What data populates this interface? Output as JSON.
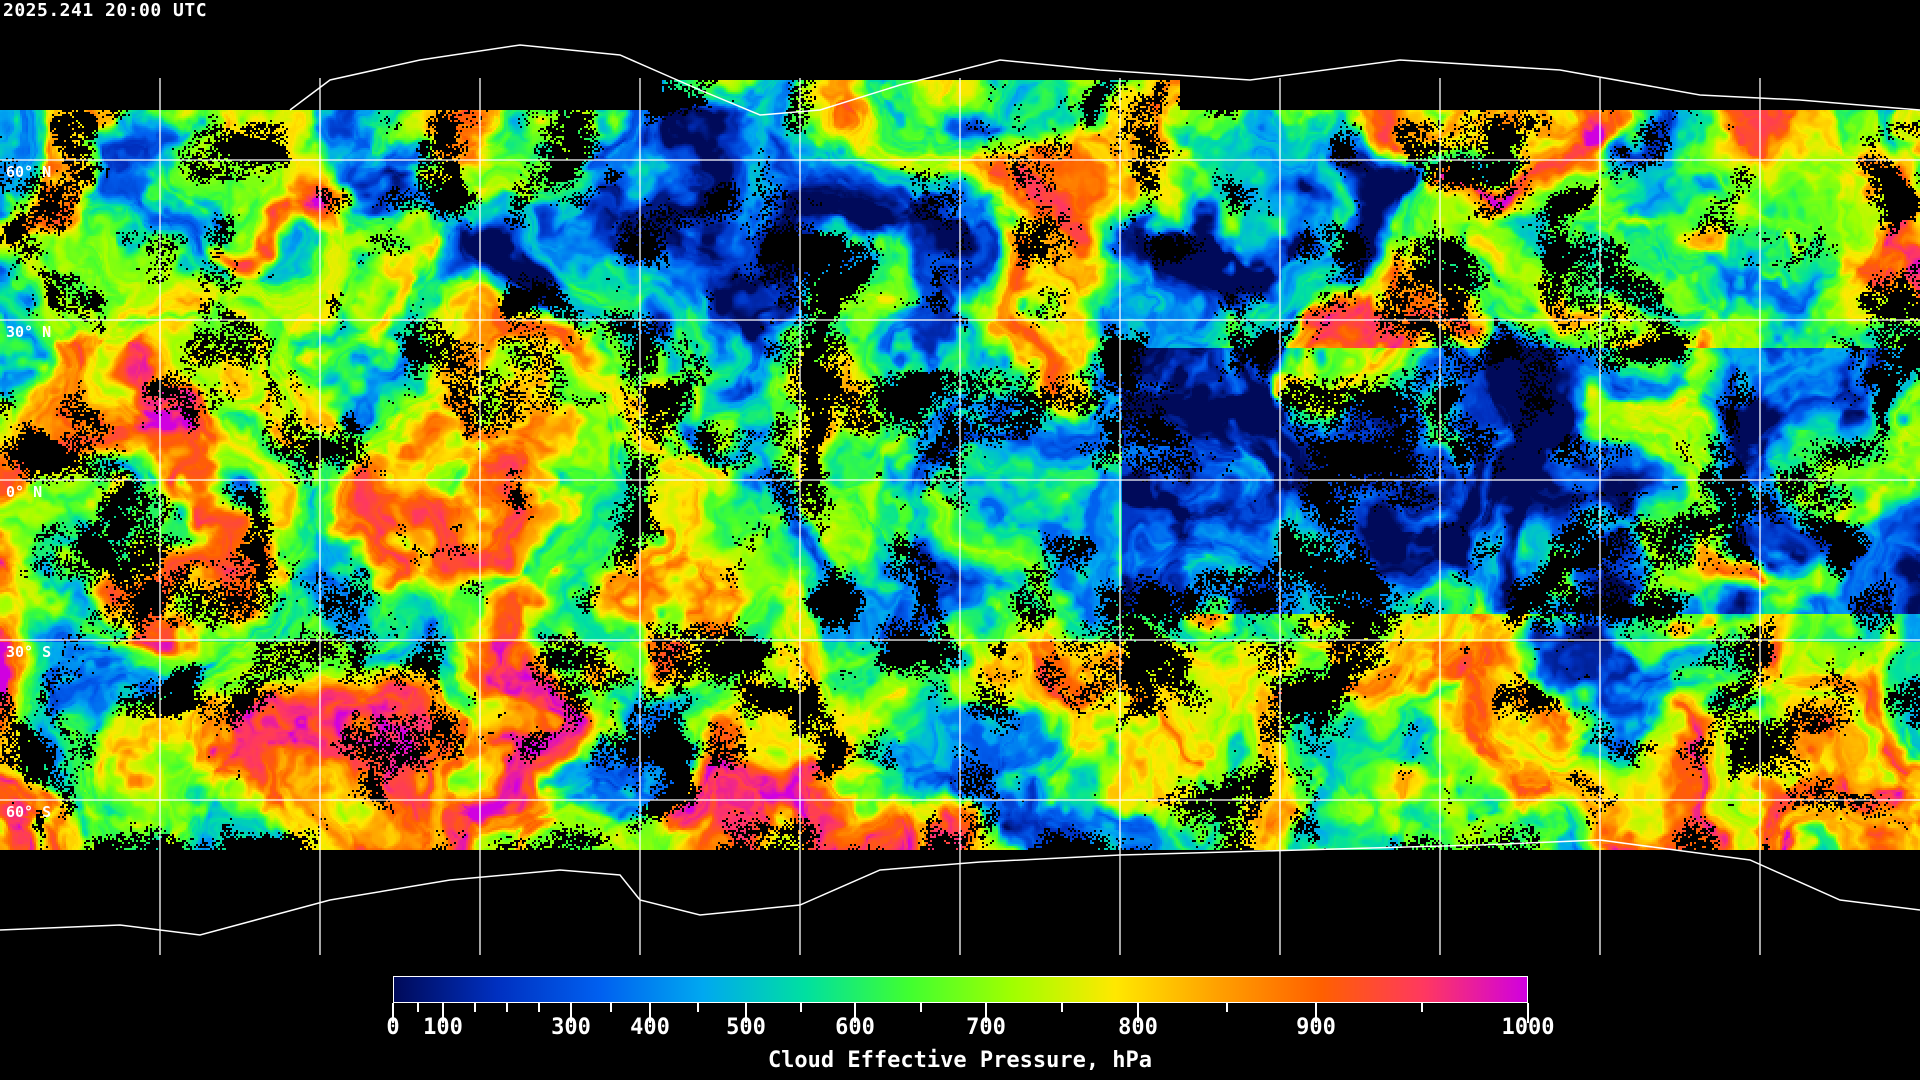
{
  "timestamp": "2025.241 20:00 UTC",
  "map": {
    "projection": "equirectangular",
    "grid_longitudes": [
      -150,
      -120,
      -90,
      -60,
      -30,
      0,
      30,
      60,
      90,
      120,
      150
    ],
    "grid_latitudes": [
      60,
      30,
      0,
      -30,
      -60
    ],
    "lat_labels": [
      "60° N",
      "30° N",
      "0° N",
      "30° S",
      "60° S"
    ],
    "background": "#000000",
    "gridline_color": "#ffffff",
    "coastline_color": "#ffffff"
  },
  "colorbar": {
    "title": "Cloud Effective Pressure, hPa",
    "range": [
      0,
      1000
    ],
    "tick_labels": [
      "0",
      "100",
      "300",
      "400",
      "500",
      "600",
      "700",
      "800",
      "900",
      "1000"
    ],
    "minor_ticks": [
      50,
      150,
      200,
      250,
      350,
      450,
      550,
      650,
      750,
      850,
      950
    ],
    "colors": [
      "#000a5a",
      "#0030c0",
      "#0060f0",
      "#00a8f0",
      "#00e0a0",
      "#40ff30",
      "#a0ff00",
      "#ffe800",
      "#ffa000",
      "#ff6000",
      "#ff3860",
      "#d000e0"
    ]
  }
}
